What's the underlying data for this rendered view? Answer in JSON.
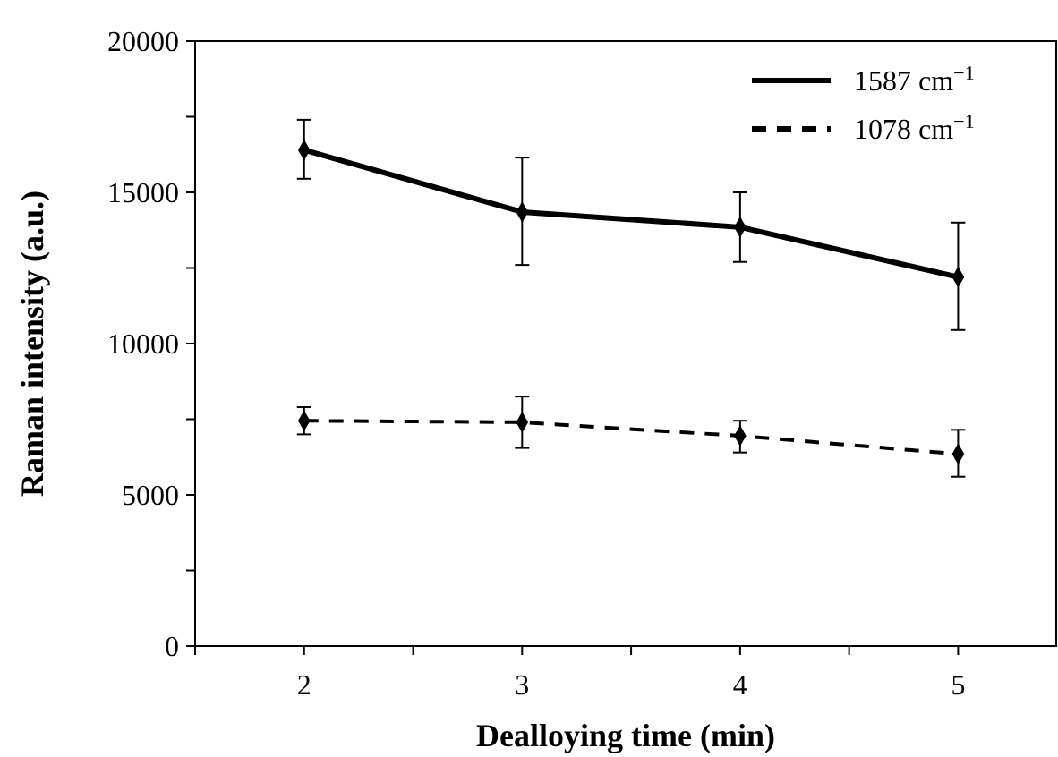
{
  "chart_data": {
    "type": "line",
    "xlabel": "Dealloying time (min)",
    "ylabel": "Raman intensity (a.u.)",
    "x": [
      2,
      3,
      4,
      5
    ],
    "xlim": [
      1.5,
      5.45
    ],
    "xticks": [
      {
        "value": 1.5,
        "label": null
      },
      2,
      {
        "value": 2.5,
        "label": null
      },
      3,
      {
        "value": 3.5,
        "label": null
      },
      4,
      {
        "value": 4.5,
        "label": null
      },
      5
    ],
    "ylim": [
      0,
      20000
    ],
    "yticks": [
      0,
      {
        "value": 2500,
        "label": null
      },
      5000,
      {
        "value": 7500,
        "label": null
      },
      10000,
      {
        "value": 12500,
        "label": null
      },
      15000,
      {
        "value": 17500,
        "label": null
      },
      20000
    ],
    "marker": "diamond",
    "legend": "top right",
    "grid": false,
    "series": [
      {
        "name": "1587 cm$^{−1}$",
        "color": "#000000",
        "line_style": "solid",
        "values": [
          16400,
          14350,
          13850,
          12200
        ],
        "errors": [
          [
            15450,
            17400
          ],
          [
            12600,
            16150
          ],
          [
            12700,
            15000
          ],
          [
            10450,
            14000
          ]
        ]
      },
      {
        "name": "1078 cm$^{−1}$",
        "color": "#000000",
        "line_style": "dashed",
        "values": [
          7450,
          7400,
          6950,
          6350
        ],
        "errors": [
          [
            7000,
            7900
          ],
          [
            6550,
            8250
          ],
          [
            6400,
            7450
          ],
          [
            5600,
            7150
          ]
        ]
      }
    ]
  }
}
